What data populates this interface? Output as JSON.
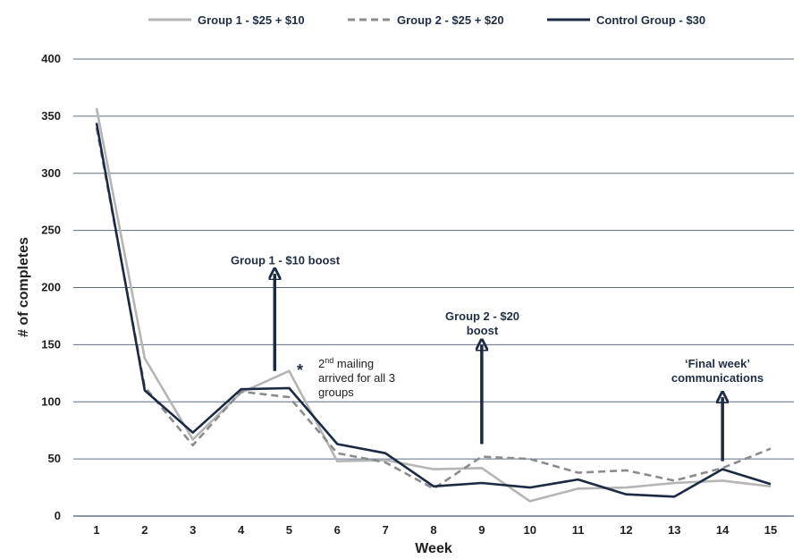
{
  "chart_data": {
    "type": "line",
    "title": "",
    "xlabel": "Week",
    "ylabel": "# of completes",
    "x": [
      1,
      2,
      3,
      4,
      5,
      6,
      7,
      8,
      9,
      10,
      11,
      12,
      13,
      14,
      15
    ],
    "ylim": [
      0,
      400
    ],
    "yticks": [
      0,
      50,
      100,
      150,
      200,
      250,
      300,
      350,
      400
    ],
    "grid": true,
    "legend_position": "top-center",
    "series": [
      {
        "name": "Group 1 - $25 + $10",
        "style": "solid",
        "color": "#b5b5b5",
        "values": [
          357,
          138,
          67,
          108,
          127,
          48,
          49,
          41,
          42,
          13,
          24,
          25,
          29,
          31,
          26
        ]
      },
      {
        "name": "Group 2 - $25 + $20",
        "style": "dashed",
        "color": "#8c8c8c",
        "values": [
          340,
          113,
          62,
          109,
          104,
          55,
          47,
          24,
          52,
          50,
          38,
          40,
          31,
          42,
          59
        ]
      },
      {
        "name": "Control Group - $30",
        "style": "solid",
        "color": "#1c2a44",
        "values": [
          344,
          110,
          73,
          111,
          112,
          63,
          55,
          26,
          29,
          25,
          32,
          19,
          17,
          41,
          28
        ]
      }
    ],
    "annotations": [
      {
        "text": "Group 1 - $10 boost",
        "lines": [
          "Group 1 - $10 boost"
        ],
        "arrow_week": 4.7,
        "arrow_from": 127,
        "arrow_to": 212
      },
      {
        "text": "Group 2 - $20 boost",
        "lines": [
          "Group 2 - $20",
          "boost"
        ],
        "arrow_week": 9,
        "arrow_from": 63,
        "arrow_to": 150
      },
      {
        "text": "'Final week' communications",
        "lines": [
          "‘Final week’",
          "communications"
        ],
        "arrow_week": 14,
        "arrow_from": 48,
        "arrow_to": 104
      }
    ],
    "note": {
      "marker": "*",
      "ordinal": "2",
      "ordinal_suffix": "nd",
      "lines": [
        "mailing",
        "arrived for all 3",
        "groups"
      ]
    }
  }
}
